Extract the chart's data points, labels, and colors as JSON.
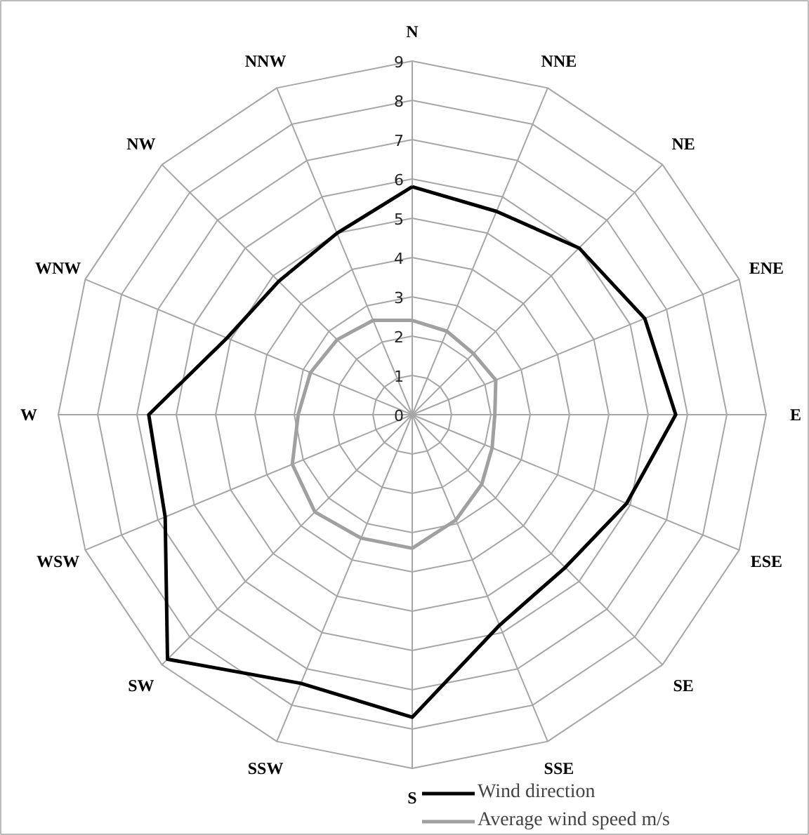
{
  "chart_data": {
    "type": "radar",
    "categories": [
      "N",
      "NNE",
      "NE",
      "ENE",
      "E",
      "ESE",
      "SE",
      "SSE",
      "S",
      "SSW",
      "SW",
      "WSW",
      "W",
      "WNW",
      "NW",
      "NNW"
    ],
    "series": [
      {
        "name": "Wind direction",
        "color": "#000000",
        "values": [
          5.8,
          5.6,
          6.0,
          6.4,
          6.7,
          5.9,
          5.5,
          5.8,
          7.7,
          7.4,
          8.8,
          6.8,
          6.7,
          5.1,
          4.8,
          5.0
        ]
      },
      {
        "name": "Average wind speed m/s",
        "color": "#a0a0a0",
        "values": [
          2.4,
          2.3,
          2.2,
          2.3,
          2.1,
          2.2,
          2.5,
          2.9,
          3.4,
          3.4,
          3.5,
          3.3,
          2.9,
          2.8,
          2.7,
          2.6
        ]
      }
    ],
    "ylim": [
      0,
      9
    ],
    "yticks": [
      0,
      1,
      2,
      3,
      4,
      5,
      6,
      7,
      8,
      9
    ],
    "grid": true,
    "legend": "bottom right",
    "marker": "none",
    "line_style": "solid"
  }
}
